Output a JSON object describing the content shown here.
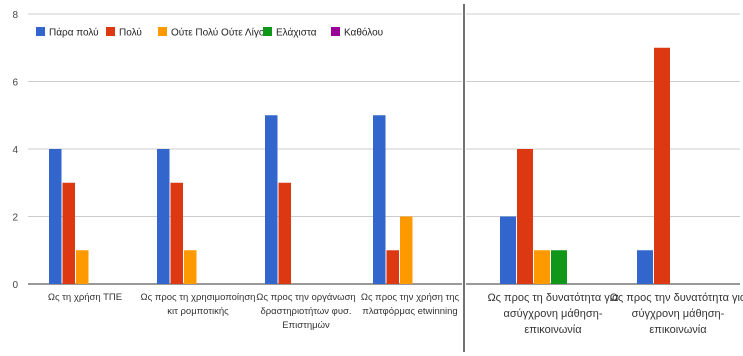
{
  "chart_data": [
    {
      "type": "bar",
      "title": "",
      "xlabel": "",
      "ylabel": "",
      "ylim": [
        0,
        8
      ],
      "yticks": [
        0,
        2,
        4,
        6,
        8
      ],
      "grid": true,
      "legend_position": "top-left",
      "categories": [
        [
          "Ως τη χρήση ΤΠΕ"
        ],
        [
          "Ως προς τη χρησιμοποίηση",
          "κιτ ρομποτικής"
        ],
        [
          "Ως προς την οργάνωση",
          "δραστηριοτήτων φυσ.",
          "Επιστημών"
        ],
        [
          "Ως προς την χρήση της",
          "πλατφόρμας etwinning"
        ]
      ],
      "series": [
        {
          "name": "Πάρα πολύ",
          "color": "#3366cc",
          "values": [
            4,
            4,
            5,
            5
          ]
        },
        {
          "name": "Πολύ",
          "color": "#dc3912",
          "values": [
            3,
            3,
            3,
            1
          ]
        },
        {
          "name": "Ούτε Πολύ Ούτε Λίγο",
          "color": "#ff9900",
          "values": [
            1,
            1,
            0,
            2
          ]
        },
        {
          "name": "Ελάχιστα",
          "color": "#109618",
          "values": [
            0,
            0,
            0,
            0
          ]
        },
        {
          "name": "Καθόλου",
          "color": "#990099",
          "values": [
            0,
            0,
            0,
            0
          ]
        }
      ]
    },
    {
      "type": "bar",
      "title": "",
      "xlabel": "",
      "ylabel": "",
      "ylim": [
        0,
        8
      ],
      "grid": true,
      "categories": [
        [
          "Ως προς τη δυνατότητα για",
          "ασύγχρονη μάθηση-",
          "επικοινωνία"
        ],
        [
          "Ως προς την δυνατότητα για",
          "σύγχρονη μάθηση-",
          "επικοινωνία"
        ]
      ],
      "series": [
        {
          "name": "Πάρα πολύ",
          "color": "#3366cc",
          "values": [
            2,
            1
          ]
        },
        {
          "name": "Πολύ",
          "color": "#dc3912",
          "values": [
            4,
            7
          ]
        },
        {
          "name": "Ούτε Πολύ Ούτε Λίγο",
          "color": "#ff9900",
          "values": [
            1,
            0
          ]
        },
        {
          "name": "Ελάχιστα",
          "color": "#109618",
          "values": [
            1,
            0
          ]
        },
        {
          "name": "Καθόλου",
          "color": "#990099",
          "values": [
            0,
            0
          ]
        }
      ]
    }
  ]
}
